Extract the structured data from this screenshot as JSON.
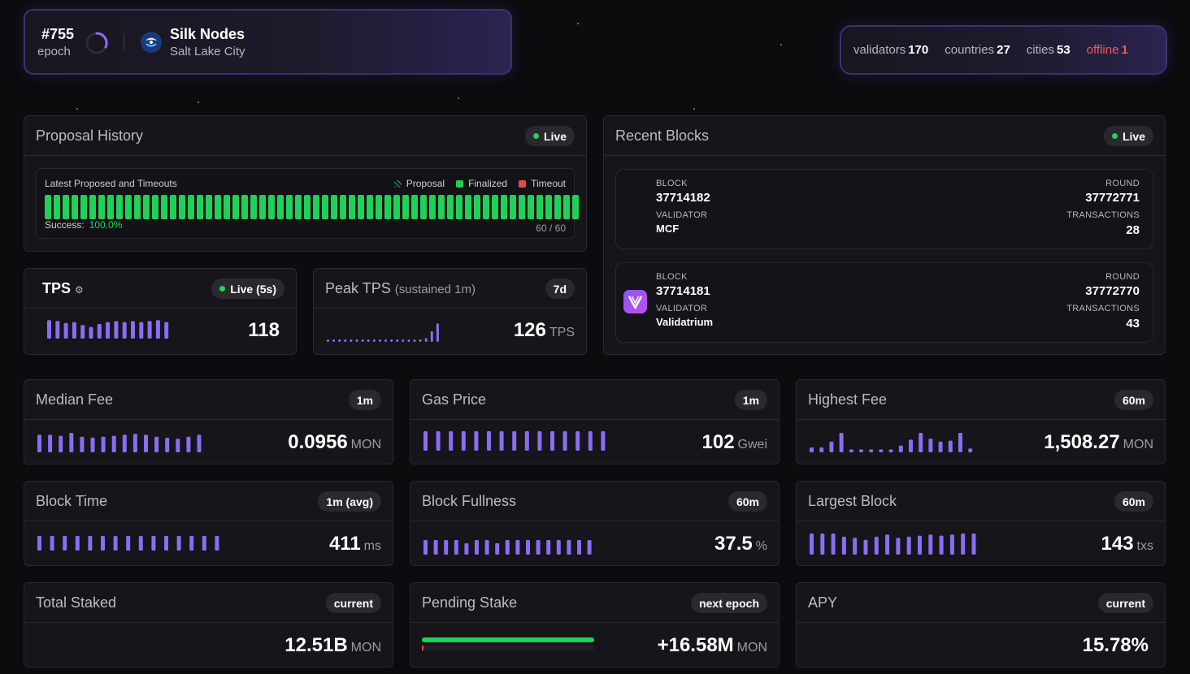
{
  "epoch": {
    "number": "#755",
    "label": "epoch"
  },
  "node": {
    "name": "Silk Nodes",
    "city": "Salt Lake City"
  },
  "network": {
    "validators_label": "validators",
    "validators": "170",
    "countries_label": "countries",
    "countries": "27",
    "cities_label": "cities",
    "cities": "53",
    "offline_label": "offline",
    "offline": "1"
  },
  "proposal_history": {
    "title": "Proposal History",
    "badge": "Live",
    "subtitle": "Latest Proposed and Timeouts",
    "legend": [
      "Proposal",
      "Finalized",
      "Timeout"
    ],
    "success_label": "Success:",
    "success_value": "100.0%",
    "count": "60 / 60",
    "finalized": 60,
    "total": 60,
    "colors": {
      "finalized": "#1ed158",
      "timeout": "#e0494e",
      "proposal": "#2b6b46"
    }
  },
  "tps": {
    "title": "TPS",
    "badge": "Live (5s)",
    "value": "118",
    "bars": [
      0.95,
      0.9,
      0.8,
      0.85,
      0.7,
      0.6,
      0.75,
      0.85,
      0.9,
      0.85,
      0.9,
      0.85,
      0.9,
      0.95,
      0.85
    ]
  },
  "peak_tps": {
    "title": "Peak TPS",
    "title_suffix": "(sustained 1m)",
    "badge": "7d",
    "value": "126",
    "unit": "TPS",
    "bars": [
      0.08,
      0.08,
      0.08,
      0.08,
      0.08,
      0.08,
      0.08,
      0.08,
      0.08,
      0.08,
      0.08,
      0.08,
      0.08,
      0.08,
      0.08,
      0.08,
      0.08,
      0.2,
      0.55,
      0.95
    ]
  },
  "recent_blocks": {
    "title": "Recent Blocks",
    "badge": "Live",
    "block_label": "BLOCK",
    "round_label": "ROUND",
    "validator_label": "VALIDATOR",
    "tx_label": "TRANSACTIONS",
    "items": [
      {
        "block": "37714182",
        "round": "37772771",
        "validator": "MCF",
        "transactions": "28"
      },
      {
        "block": "37714181",
        "round": "37772770",
        "validator": "Validatrium",
        "transactions": "43"
      }
    ]
  },
  "metrics": [
    {
      "title": "Median Fee",
      "badge": "1m",
      "value": "0.0956",
      "unit": "MON",
      "bars": [
        0.9,
        0.9,
        0.85,
        1,
        0.8,
        0.75,
        0.8,
        0.85,
        0.9,
        0.95,
        0.9,
        0.8,
        0.75,
        0.7,
        0.8,
        0.9
      ]
    },
    {
      "title": "Gas Price",
      "badge": "1m",
      "value": "102",
      "unit": "Gwei",
      "bars": [
        1,
        1,
        1,
        1,
        1,
        1,
        1,
        1,
        1,
        1,
        1,
        1,
        1,
        1,
        1
      ]
    },
    {
      "title": "Highest Fee",
      "badge": "60m",
      "value": "1,508.27",
      "unit": "MON",
      "bars": [
        0.25,
        0.25,
        0.55,
        1,
        0.15,
        0.15,
        0.15,
        0.15,
        0.15,
        0.35,
        0.65,
        1,
        0.7,
        0.55,
        0.6,
        1,
        0.2
      ]
    },
    {
      "title": "Block Time",
      "badge": "1m (avg)",
      "value": "411",
      "unit": "ms",
      "bars": [
        0.9,
        0.9,
        0.9,
        0.9,
        0.9,
        0.9,
        0.9,
        0.9,
        0.9,
        0.9,
        0.9,
        0.9,
        0.9,
        0.9,
        0.9
      ]
    },
    {
      "title": "Block Fullness",
      "badge": "60m",
      "value": "37.5",
      "unit": "%",
      "bars": [
        0.9,
        0.9,
        0.9,
        0.9,
        0.7,
        0.9,
        0.9,
        0.7,
        0.9,
        0.9,
        0.9,
        0.9,
        0.9,
        0.9,
        0.9,
        0.9,
        0.9
      ]
    },
    {
      "title": "Largest Block",
      "badge": "60m",
      "value": "143",
      "unit": "txs",
      "bars": [
        1,
        1,
        1,
        0.85,
        0.8,
        0.7,
        0.85,
        0.95,
        0.8,
        0.85,
        0.9,
        0.95,
        0.9,
        0.95,
        1,
        1
      ]
    },
    {
      "title": "Total Staked",
      "badge": "current",
      "value": "12.51B",
      "unit": "MON"
    },
    {
      "title": "Pending Stake",
      "badge": "next epoch",
      "value": "+16.58M",
      "unit": "MON",
      "progress": 1.0
    },
    {
      "title": "APY",
      "badge": "current",
      "value": "15.78%",
      "unit": ""
    }
  ]
}
